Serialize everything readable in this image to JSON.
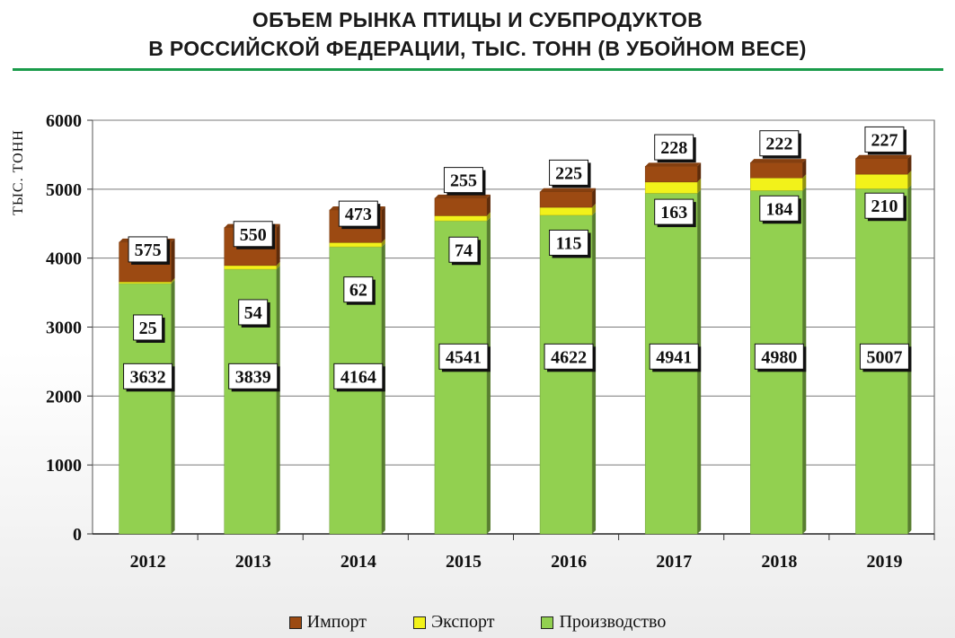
{
  "title_line1": "ОБЪЕМ РЫНКА ПТИЦЫ И СУБПРОДУКТОВ",
  "title_line2": "В РОССИЙСКОЙ ФЕДЕРАЦИИ, ТЫС. ТОНН (В УБОЙНОМ ВЕСЕ)",
  "colors": {
    "accent_rule": "#1a9b4a"
  },
  "chart_data": {
    "type": "bar",
    "stacked": true,
    "categories": [
      "2012",
      "2013",
      "2014",
      "2015",
      "2016",
      "2017",
      "2018",
      "2019"
    ],
    "ylabel": "ТЫС. ТОНН",
    "ylim": [
      0,
      6000
    ],
    "yticks": [
      0,
      1000,
      2000,
      3000,
      4000,
      5000,
      6000
    ],
    "grid": true,
    "legend_position": "bottom",
    "series": [
      {
        "name": "Производство",
        "color": "#92d050",
        "values": [
          3632,
          3839,
          4164,
          4541,
          4622,
          4941,
          4980,
          5007
        ]
      },
      {
        "name": "Экспорт",
        "color": "#f2f21a",
        "values": [
          25,
          54,
          62,
          74,
          115,
          163,
          184,
          210
        ]
      },
      {
        "name": "Импорт",
        "color": "#9c4a12",
        "values": [
          575,
          550,
          473,
          255,
          225,
          228,
          222,
          227
        ]
      }
    ],
    "legend_order": [
      "Импорт",
      "Экспорт",
      "Производство"
    ]
  }
}
